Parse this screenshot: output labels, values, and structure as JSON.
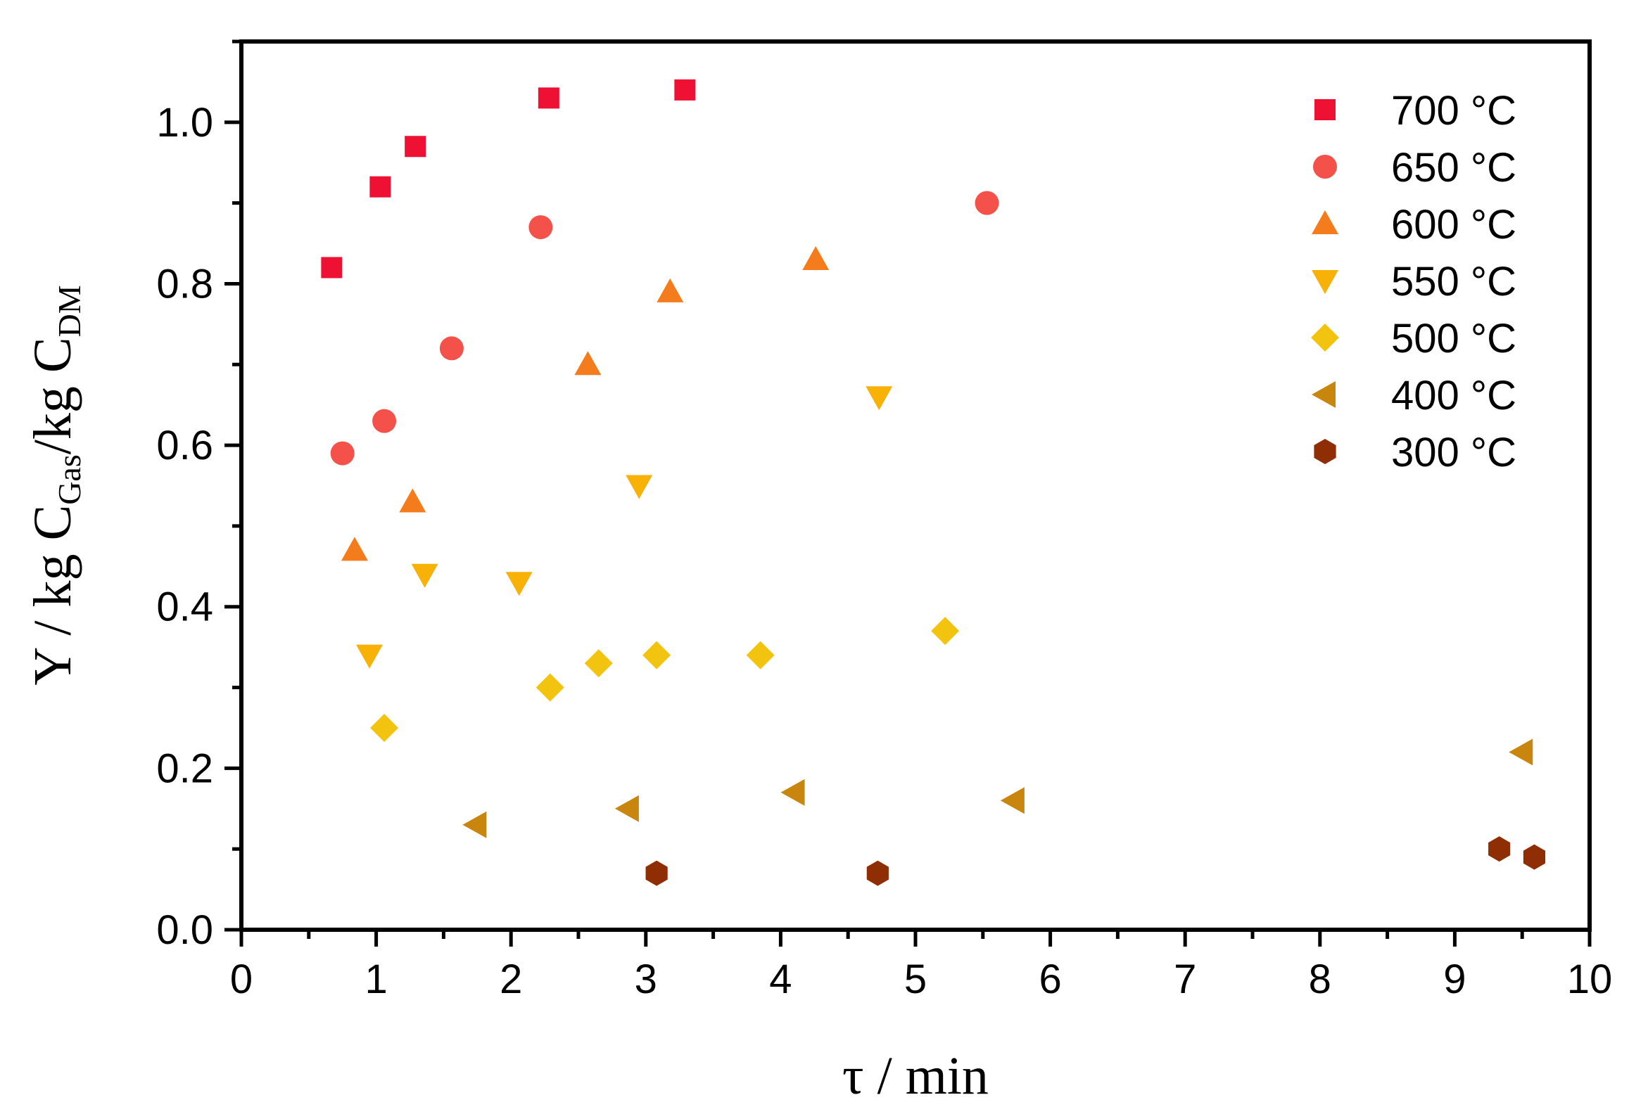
{
  "chart_data": {
    "type": "scatter",
    "title": "",
    "xlabel": "τ / min",
    "ylabel": {
      "prefix": "Y / kg C",
      "sub1": "Gas",
      "middle": "/kg C",
      "sub2": "DM"
    },
    "xlim": [
      0,
      10
    ],
    "ylim": [
      0,
      1.1
    ],
    "x_ticks": [
      "0",
      "1",
      "2",
      "3",
      "4",
      "5",
      "6",
      "7",
      "8",
      "9",
      "10"
    ],
    "y_ticks": [
      "0.0",
      "0.2",
      "0.4",
      "0.6",
      "0.8",
      "1.0"
    ],
    "grid": false,
    "legend_position": "top-right",
    "series": [
      {
        "name": "700 °C",
        "marker": "square",
        "color": "#ee1133",
        "points": [
          [
            0.67,
            0.82
          ],
          [
            1.03,
            0.92
          ],
          [
            1.29,
            0.97
          ],
          [
            2.28,
            1.03
          ],
          [
            3.29,
            1.04
          ]
        ]
      },
      {
        "name": "650 °C",
        "marker": "circle",
        "color": "#f4514a",
        "points": [
          [
            0.75,
            0.59
          ],
          [
            1.06,
            0.63
          ],
          [
            1.56,
            0.72
          ],
          [
            2.22,
            0.87
          ],
          [
            5.53,
            0.9
          ]
        ]
      },
      {
        "name": "600 °C",
        "marker": "triangle-up",
        "color": "#f47c1c",
        "points": [
          [
            0.84,
            0.47
          ],
          [
            1.27,
            0.53
          ],
          [
            2.57,
            0.7
          ],
          [
            3.18,
            0.79
          ],
          [
            4.26,
            0.83
          ]
        ]
      },
      {
        "name": "550 °C",
        "marker": "triangle-down",
        "color": "#f8b107",
        "points": [
          [
            0.95,
            0.34
          ],
          [
            1.36,
            0.44
          ],
          [
            2.06,
            0.43
          ],
          [
            2.95,
            0.55
          ],
          [
            4.73,
            0.66
          ]
        ]
      },
      {
        "name": "500 °C",
        "marker": "diamond",
        "color": "#f2c40f",
        "points": [
          [
            1.06,
            0.25
          ],
          [
            2.29,
            0.3
          ],
          [
            2.65,
            0.33
          ],
          [
            3.08,
            0.34
          ],
          [
            3.85,
            0.34
          ],
          [
            5.22,
            0.37
          ]
        ]
      },
      {
        "name": "400 °C",
        "marker": "triangle-left",
        "color": "#c8860e",
        "points": [
          [
            1.74,
            0.13
          ],
          [
            2.87,
            0.15
          ],
          [
            4.1,
            0.17
          ],
          [
            5.73,
            0.16
          ],
          [
            9.5,
            0.22
          ]
        ]
      },
      {
        "name": "300 °C",
        "marker": "hexagon",
        "color": "#8f2d05",
        "points": [
          [
            3.08,
            0.07
          ],
          [
            4.72,
            0.07
          ],
          [
            9.33,
            0.1
          ],
          [
            9.59,
            0.09
          ]
        ]
      }
    ]
  }
}
